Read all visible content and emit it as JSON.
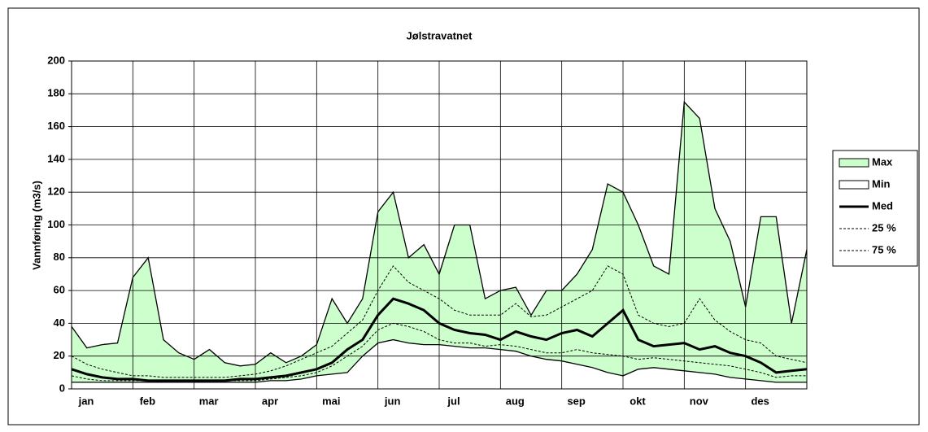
{
  "chart_data": {
    "type": "line",
    "title": "Jølstravatnet",
    "y_label": "Vannføring (m3/s)",
    "categories": [
      "jan",
      null,
      null,
      null,
      "feb",
      null,
      null,
      null,
      "mar",
      null,
      null,
      null,
      "apr",
      null,
      null,
      null,
      "mai",
      null,
      null,
      null,
      "jun",
      null,
      null,
      null,
      "jul",
      null,
      null,
      null,
      "aug",
      null,
      null,
      null,
      "sep",
      null,
      null,
      null,
      "okt",
      null,
      null,
      null,
      "nov",
      null,
      null,
      null,
      "des",
      null,
      null,
      null,
      null
    ],
    "ylim": [
      0,
      200
    ],
    "yticks": [
      0,
      20,
      40,
      60,
      80,
      100,
      120,
      140,
      160,
      180,
      200
    ],
    "grid": true,
    "legend": "right",
    "series": [
      {
        "name": "Max",
        "color": "#ccffcc",
        "area": true,
        "values": [
          38,
          25,
          27,
          28,
          68,
          80,
          30,
          22,
          18,
          24,
          16,
          14,
          15,
          22,
          16,
          20,
          27,
          55,
          40,
          55,
          108,
          120,
          80,
          88,
          70,
          100,
          100,
          55,
          60,
          62,
          45,
          60,
          60,
          70,
          85,
          125,
          120,
          100,
          75,
          70,
          175,
          165,
          110,
          90,
          50,
          105,
          105,
          40,
          85
        ]
      },
      {
        "name": "Min",
        "color": "#ffffff",
        "area": true,
        "values": [
          4,
          4,
          4,
          4,
          4,
          4,
          4,
          4,
          4,
          4,
          4,
          4,
          4,
          5,
          5,
          6,
          8,
          9,
          10,
          20,
          28,
          30,
          28,
          27,
          27,
          26,
          25,
          25,
          24,
          23,
          20,
          18,
          17,
          15,
          13,
          10,
          8,
          12,
          13,
          12,
          11,
          10,
          9,
          7,
          6,
          5,
          4,
          4,
          4
        ]
      },
      {
        "name": "Med",
        "color": "#000000",
        "width": 3,
        "values": [
          12,
          9,
          7,
          6,
          6,
          5,
          5,
          5,
          5,
          5,
          5,
          6,
          6,
          7,
          8,
          10,
          12,
          16,
          24,
          30,
          45,
          55,
          52,
          48,
          40,
          36,
          34,
          33,
          30,
          35,
          32,
          30,
          34,
          36,
          32,
          40,
          48,
          30,
          26,
          27,
          28,
          24,
          26,
          22,
          20,
          16,
          10,
          11,
          12
        ]
      },
      {
        "name": "25 %",
        "color": "#000000",
        "dash": true,
        "values": [
          8,
          6,
          5,
          5,
          5,
          5,
          4,
          4,
          4,
          5,
          5,
          5,
          5,
          6,
          7,
          8,
          10,
          14,
          20,
          26,
          36,
          40,
          38,
          35,
          30,
          28,
          28,
          26,
          27,
          26,
          24,
          22,
          22,
          24,
          22,
          21,
          20,
          18,
          19,
          18,
          17,
          16,
          15,
          14,
          12,
          10,
          7,
          8,
          8
        ]
      },
      {
        "name": "75 %",
        "color": "#000000",
        "dash": true,
        "values": [
          20,
          15,
          12,
          10,
          8,
          8,
          7,
          7,
          7,
          7,
          7,
          8,
          9,
          11,
          14,
          18,
          22,
          26,
          34,
          42,
          60,
          75,
          65,
          60,
          55,
          48,
          45,
          45,
          45,
          52,
          44,
          45,
          50,
          55,
          60,
          75,
          70,
          45,
          40,
          38,
          40,
          55,
          42,
          35,
          30,
          28,
          20,
          18,
          16
        ]
      }
    ]
  }
}
